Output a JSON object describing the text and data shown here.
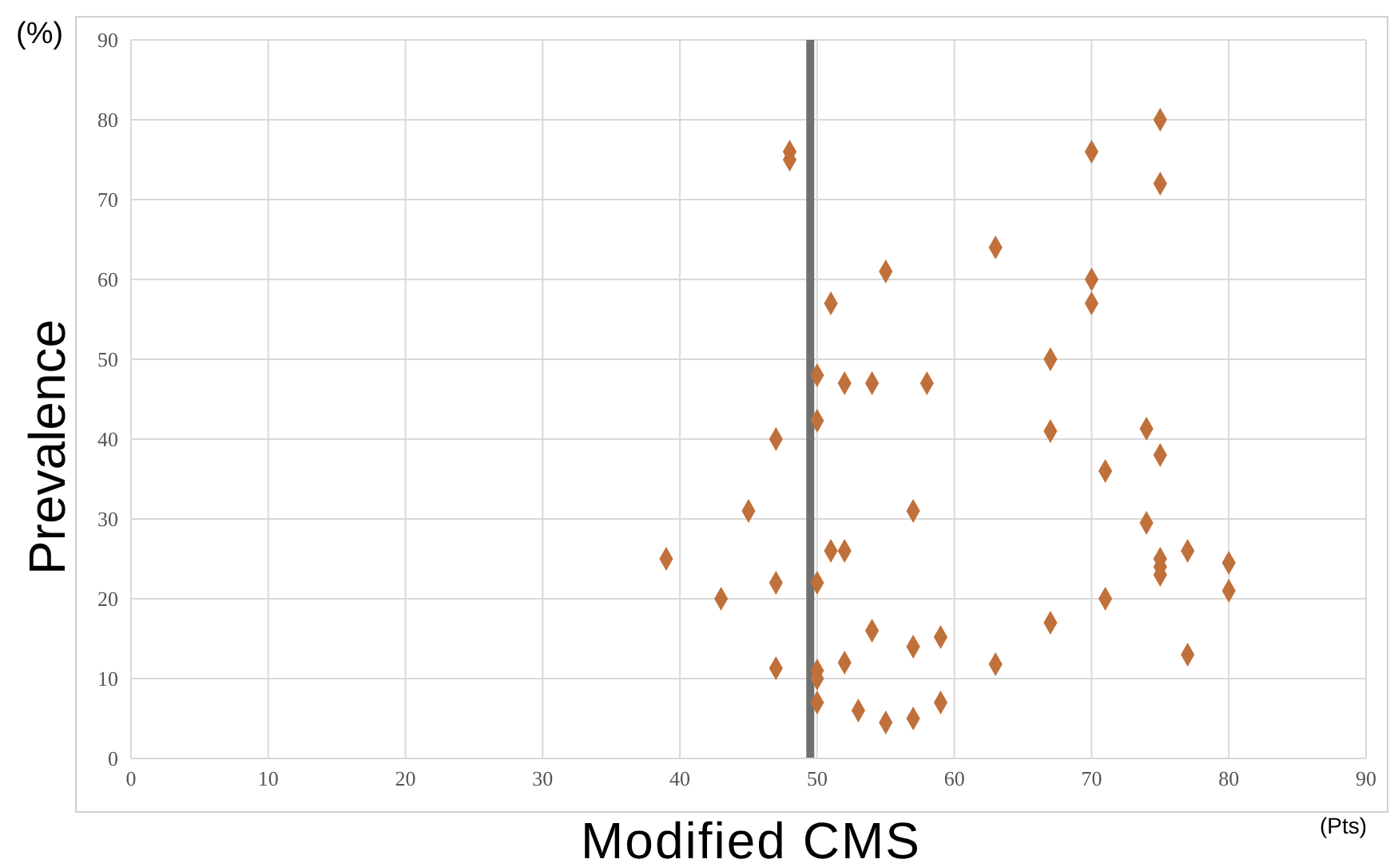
{
  "chart_data": {
    "type": "scatter",
    "xlabel": "Modified CMS",
    "ylabel": "Prevalence",
    "annotations": [
      "(%)",
      "(Pts)"
    ],
    "series": [
      {
        "color": "#c0703a",
        "x": [
          39,
          43,
          45,
          47,
          47,
          47,
          48,
          48,
          50,
          50,
          50,
          50,
          50,
          50,
          51,
          51,
          52,
          52,
          52,
          53,
          54,
          54,
          55,
          55,
          57,
          57,
          57,
          58,
          59,
          59,
          63,
          63,
          67,
          67,
          67,
          70,
          70,
          70,
          71,
          71,
          74,
          74,
          75,
          75,
          75,
          75,
          75,
          75,
          77,
          77,
          80,
          80
        ],
        "values": [
          25,
          20,
          31,
          40,
          22,
          11.3,
          76,
          75,
          48,
          42.3,
          22,
          11,
          10,
          7,
          57,
          26,
          47,
          26,
          12,
          6,
          47,
          16,
          61,
          4.5,
          31,
          14,
          5,
          47,
          15.2,
          7,
          64,
          11.8,
          50,
          41,
          17,
          76,
          60,
          57,
          36,
          20,
          41.3,
          29.5,
          80,
          72,
          38,
          25,
          24,
          23,
          26,
          13,
          24.5,
          21
        ]
      }
    ],
    "xlim": [
      0,
      90
    ],
    "xticks": [
      0,
      10,
      20,
      30,
      40,
      50,
      60,
      70,
      80,
      90
    ],
    "ylim": [
      0,
      90
    ],
    "yticks": [
      0,
      10,
      20,
      30,
      40,
      50,
      60,
      70,
      80,
      90
    ],
    "grid": true,
    "marker": "diamond",
    "ref_lines": [
      {
        "axis": "x",
        "value": 49.5,
        "color": "#707070"
      }
    ]
  }
}
